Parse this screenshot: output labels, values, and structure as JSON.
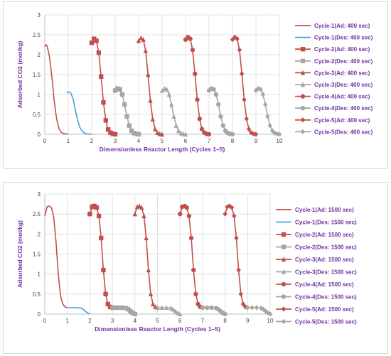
{
  "chart_data": [
    {
      "type": "line",
      "xlabel": "Dimensionless Reactor Length (Cycles 1–5)",
      "ylabel": "Adsorbed CO2 (mol/kg)",
      "xlim": [
        0,
        10
      ],
      "ylim": [
        0,
        3
      ],
      "xticks": [
        "0",
        "1",
        "2",
        "3",
        "4",
        "5",
        "6",
        "7",
        "8",
        "9",
        "10"
      ],
      "yticks": [
        "0",
        "0.5",
        "1",
        "1.5",
        "2",
        "2.5",
        "3"
      ],
      "grid": true,
      "legend_position": "right",
      "series": [
        {
          "name": "Cycle-1(Ad: 400 sec)",
          "color": "#c0504d",
          "marker": "none",
          "x": [
            0,
            0.05,
            0.1,
            0.2,
            0.3,
            0.4,
            0.5,
            0.6,
            0.7,
            0.8,
            0.9,
            1.0
          ],
          "y": [
            2.2,
            2.25,
            2.22,
            1.95,
            1.45,
            0.85,
            0.4,
            0.15,
            0.05,
            0.02,
            0.01,
            0
          ]
        },
        {
          "name": "Cycle-1(Des: 400 sec)",
          "color": "#4a9fdc",
          "marker": "none",
          "x": [
            0.95,
            1.0,
            1.1,
            1.2,
            1.3,
            1.4,
            1.5,
            1.6,
            1.7,
            1.8,
            1.9,
            2.0
          ],
          "y": [
            1.03,
            1.07,
            1.05,
            0.9,
            0.62,
            0.35,
            0.17,
            0.07,
            0.03,
            0.01,
            0.005,
            0
          ]
        },
        {
          "name": "Cycle-2(Ad: 400 sec)",
          "color": "#c0504d",
          "marker": "square",
          "x": [
            2.0,
            2.1,
            2.2,
            2.3,
            2.4,
            2.5,
            2.6,
            2.7,
            2.8,
            2.9,
            3.0
          ],
          "y": [
            2.3,
            2.4,
            2.35,
            2.05,
            1.45,
            0.8,
            0.35,
            0.12,
            0.04,
            0.01,
            0
          ]
        },
        {
          "name": "Cycle-2(Des: 400 sec)",
          "color": "#a6a6a6",
          "marker": "square",
          "x": [
            3.0,
            3.1,
            3.2,
            3.3,
            3.4,
            3.5,
            3.6,
            3.7,
            3.8,
            3.9,
            4.0
          ],
          "y": [
            1.1,
            1.15,
            1.13,
            1.0,
            0.75,
            0.45,
            0.22,
            0.09,
            0.03,
            0.01,
            0
          ]
        },
        {
          "name": "Cycle-3(Ad: 400 sec)",
          "color": "#c0504d",
          "marker": "triangle",
          "x": [
            4.0,
            4.1,
            4.2,
            4.3,
            4.4,
            4.5,
            4.6,
            4.7,
            4.8,
            4.9,
            5.0
          ],
          "y": [
            2.35,
            2.42,
            2.38,
            2.1,
            1.5,
            0.85,
            0.38,
            0.13,
            0.04,
            0.01,
            0
          ]
        },
        {
          "name": "Cycle-3(Des: 400 sec)",
          "color": "#a6a6a6",
          "marker": "triangle",
          "x": [
            5.0,
            5.1,
            5.2,
            5.3,
            5.4,
            5.5,
            5.6,
            5.7,
            5.8,
            5.9,
            6.0
          ],
          "y": [
            1.1,
            1.15,
            1.13,
            1.0,
            0.75,
            0.45,
            0.22,
            0.09,
            0.03,
            0.01,
            0
          ]
        },
        {
          "name": "Cycle-4(Ad: 400 sec)",
          "color": "#c0504d",
          "marker": "circle",
          "x": [
            6.0,
            6.1,
            6.2,
            6.3,
            6.4,
            6.5,
            6.6,
            6.7,
            6.8,
            6.9,
            7.0
          ],
          "y": [
            2.38,
            2.44,
            2.4,
            2.12,
            1.52,
            0.87,
            0.39,
            0.13,
            0.04,
            0.01,
            0
          ]
        },
        {
          "name": "Cycle-4(Des: 400 sec)",
          "color": "#a6a6a6",
          "marker": "circle",
          "x": [
            7.0,
            7.1,
            7.2,
            7.3,
            7.4,
            7.5,
            7.6,
            7.7,
            7.8,
            7.9,
            8.0
          ],
          "y": [
            1.1,
            1.15,
            1.13,
            1.0,
            0.75,
            0.45,
            0.22,
            0.09,
            0.03,
            0.01,
            0
          ]
        },
        {
          "name": "Cycle-5(Ad: 400 sec)",
          "color": "#c0504d",
          "marker": "diamond",
          "x": [
            8.0,
            8.1,
            8.2,
            8.3,
            8.4,
            8.5,
            8.6,
            8.7,
            8.8,
            8.9,
            9.0
          ],
          "y": [
            2.38,
            2.44,
            2.4,
            2.12,
            1.52,
            0.87,
            0.39,
            0.13,
            0.04,
            0.01,
            0
          ]
        },
        {
          "name": "Cycle-5(Des: 400 sec)",
          "color": "#a6a6a6",
          "marker": "diamond",
          "x": [
            9.0,
            9.1,
            9.2,
            9.3,
            9.4,
            9.5,
            9.6,
            9.7,
            9.8,
            9.9,
            10.0
          ],
          "y": [
            1.1,
            1.15,
            1.13,
            1.0,
            0.75,
            0.45,
            0.22,
            0.09,
            0.03,
            0.01,
            0
          ]
        }
      ]
    },
    {
      "type": "line",
      "xlabel": "Dimensionless Reactor Length (Cycles 1–5)",
      "ylabel": "Adsorbed CO2 (mol/kg)",
      "xlim": [
        0,
        10
      ],
      "ylim": [
        0,
        3
      ],
      "xticks": [
        "0",
        "1",
        "2",
        "3",
        "4",
        "5",
        "6",
        "7",
        "8",
        "9",
        "10"
      ],
      "yticks": [
        "0",
        "0.5",
        "1",
        "1.5",
        "2",
        "2.5",
        "3"
      ],
      "grid": true,
      "legend_position": "right",
      "series": [
        {
          "name": "Cycle-1(Ad: 1500 sec)",
          "color": "#c0504d",
          "marker": "none",
          "x": [
            0,
            0.1,
            0.2,
            0.3,
            0.4,
            0.5,
            0.6,
            0.7,
            0.8,
            0.9,
            1.0
          ],
          "y": [
            2.45,
            2.68,
            2.7,
            2.65,
            2.4,
            1.8,
            1.0,
            0.45,
            0.25,
            0.18,
            0.16
          ]
        },
        {
          "name": "Cycle-1(Des: 1500 sec)",
          "color": "#4a9fdc",
          "marker": "none",
          "x": [
            1.0,
            1.2,
            1.4,
            1.6,
            1.7,
            1.8,
            1.9,
            2.0
          ],
          "y": [
            0.16,
            0.16,
            0.16,
            0.15,
            0.12,
            0.07,
            0.03,
            0
          ]
        },
        {
          "name": "Cycle-2(Ad: 1500 sec)",
          "color": "#c0504d",
          "marker": "square",
          "x": [
            2.0,
            2.1,
            2.2,
            2.3,
            2.4,
            2.5,
            2.6,
            2.7,
            2.8,
            2.9,
            3.0
          ],
          "y": [
            2.5,
            2.68,
            2.7,
            2.66,
            2.45,
            1.9,
            1.1,
            0.5,
            0.25,
            0.18,
            0.16
          ]
        },
        {
          "name": "Cycle-2(Des: 1500 sec)",
          "color": "#a6a6a6",
          "marker": "square",
          "x": [
            3.0,
            3.2,
            3.4,
            3.6,
            3.7,
            3.8,
            3.9,
            4.0
          ],
          "y": [
            0.16,
            0.16,
            0.16,
            0.15,
            0.12,
            0.07,
            0.03,
            0
          ]
        },
        {
          "name": "Cycle-3(Ad: 1500 sec)",
          "color": "#c0504d",
          "marker": "triangle",
          "x": [
            4.0,
            4.1,
            4.2,
            4.3,
            4.4,
            4.5,
            4.6,
            4.7,
            4.8,
            4.9,
            5.0
          ],
          "y": [
            2.5,
            2.68,
            2.7,
            2.66,
            2.45,
            1.9,
            1.1,
            0.5,
            0.25,
            0.18,
            0.16
          ]
        },
        {
          "name": "Cycle-3(Des: 1500 sec)",
          "color": "#a6a6a6",
          "marker": "triangle",
          "x": [
            5.0,
            5.2,
            5.4,
            5.6,
            5.7,
            5.8,
            5.9,
            6.0
          ],
          "y": [
            0.16,
            0.16,
            0.16,
            0.15,
            0.12,
            0.07,
            0.03,
            0
          ]
        },
        {
          "name": "Cycle-4(Ad: 1500 sec)",
          "color": "#c0504d",
          "marker": "circle",
          "x": [
            6.0,
            6.1,
            6.2,
            6.3,
            6.4,
            6.5,
            6.6,
            6.7,
            6.8,
            6.9,
            7.0
          ],
          "y": [
            2.5,
            2.68,
            2.7,
            2.66,
            2.45,
            1.9,
            1.1,
            0.5,
            0.25,
            0.18,
            0.16
          ]
        },
        {
          "name": "Cycle-4(Des: 1500 sec)",
          "color": "#a6a6a6",
          "marker": "circle",
          "x": [
            7.0,
            7.2,
            7.4,
            7.6,
            7.7,
            7.8,
            7.9,
            8.0
          ],
          "y": [
            0.16,
            0.16,
            0.16,
            0.15,
            0.12,
            0.07,
            0.03,
            0
          ]
        },
        {
          "name": "Cycle-5(Ad: 1500 sec)",
          "color": "#c0504d",
          "marker": "diamond",
          "x": [
            8.0,
            8.1,
            8.2,
            8.3,
            8.4,
            8.5,
            8.6,
            8.7,
            8.8,
            8.9,
            9.0
          ],
          "y": [
            2.5,
            2.68,
            2.7,
            2.66,
            2.45,
            1.9,
            1.1,
            0.5,
            0.25,
            0.18,
            0.16
          ]
        },
        {
          "name": "Cycle-5(Des: 1500 sec)",
          "color": "#a6a6a6",
          "marker": "diamond",
          "x": [
            9.0,
            9.2,
            9.4,
            9.6,
            9.7,
            9.8,
            9.9,
            10.0
          ],
          "y": [
            0.16,
            0.16,
            0.16,
            0.15,
            0.12,
            0.07,
            0.03,
            0
          ]
        }
      ]
    }
  ]
}
